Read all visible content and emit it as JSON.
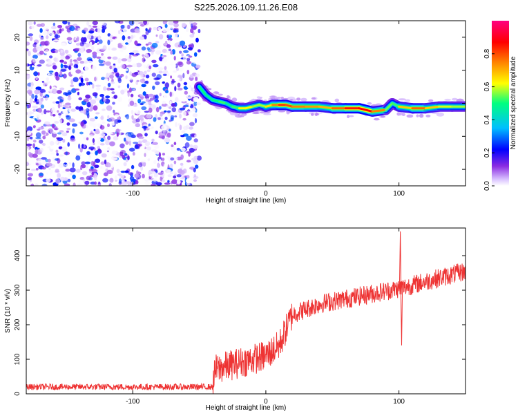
{
  "figure": {
    "title": "S225.2026.109.11.26.E08"
  },
  "chart_data": [
    {
      "type": "heatmap",
      "name": "spectrogram",
      "xlabel": "Height of straight line (km)",
      "ylabel": "Frequency (Hz)",
      "xlim": [
        -180,
        150
      ],
      "ylim": [
        -25,
        25
      ],
      "xticks": [
        -100,
        0,
        100
      ],
      "yticks": [
        -20,
        -10,
        0,
        10,
        20
      ],
      "colorbar": {
        "label": "Normalized spectral amplitude",
        "range": [
          0,
          1
        ],
        "ticks": [
          0.0,
          0.2,
          0.4,
          0.6,
          0.8
        ],
        "tick_labels": [
          "0.0",
          "0.2",
          "0.4",
          "0.6",
          "0.8"
        ],
        "colors": [
          "#ffffff",
          "#d9c2ff",
          "#8a2be2",
          "#0000ff",
          "#00bfff",
          "#00ff80",
          "#ffff00",
          "#ff8000",
          "#ff0000",
          "#ff0080"
        ]
      },
      "noise_region": {
        "x_range": [
          -180,
          -50
        ],
        "freq_range": [
          -25,
          25
        ],
        "amplitude_range": [
          0.0,
          0.3
        ]
      },
      "signal_track": [
        {
          "x": -50,
          "freq": 5,
          "amp": 0.5
        },
        {
          "x": -45,
          "freq": 2.5,
          "amp": 0.5
        },
        {
          "x": -40,
          "freq": 1,
          "amp": 0.45
        },
        {
          "x": -35,
          "freq": 0.5,
          "amp": 0.55
        },
        {
          "x": -30,
          "freq": 0,
          "amp": 0.5
        },
        {
          "x": -25,
          "freq": -1,
          "amp": 0.45
        },
        {
          "x": -20,
          "freq": -1.5,
          "amp": 0.6
        },
        {
          "x": -15,
          "freq": -1.5,
          "amp": 0.65
        },
        {
          "x": -10,
          "freq": -1,
          "amp": 0.6
        },
        {
          "x": -5,
          "freq": -0.5,
          "amp": 0.55
        },
        {
          "x": 0,
          "freq": -1,
          "amp": 0.6
        },
        {
          "x": 5,
          "freq": -0.5,
          "amp": 0.7
        },
        {
          "x": 10,
          "freq": -0.5,
          "amp": 0.8
        },
        {
          "x": 15,
          "freq": -0.5,
          "amp": 0.85
        },
        {
          "x": 20,
          "freq": -1,
          "amp": 0.75
        },
        {
          "x": 30,
          "freq": -1,
          "amp": 0.75
        },
        {
          "x": 40,
          "freq": -1,
          "amp": 0.7
        },
        {
          "x": 50,
          "freq": -1.5,
          "amp": 0.7
        },
        {
          "x": 60,
          "freq": -1.5,
          "amp": 0.85
        },
        {
          "x": 70,
          "freq": -1.5,
          "amp": 0.85
        },
        {
          "x": 80,
          "freq": -2.5,
          "amp": 0.9
        },
        {
          "x": 90,
          "freq": -2,
          "amp": 0.6
        },
        {
          "x": 95,
          "freq": 0,
          "amp": 0.5
        },
        {
          "x": 100,
          "freq": -1,
          "amp": 0.55
        },
        {
          "x": 110,
          "freq": -1.5,
          "amp": 0.8
        },
        {
          "x": 120,
          "freq": -1.5,
          "amp": 0.75
        },
        {
          "x": 130,
          "freq": -1,
          "amp": 0.6
        },
        {
          "x": 140,
          "freq": -1,
          "amp": 0.6
        },
        {
          "x": 150,
          "freq": -1,
          "amp": 0.55
        }
      ]
    },
    {
      "type": "line",
      "name": "snr",
      "xlabel": "Height of straight line (km)",
      "ylabel": "SNR (10 * v/v)",
      "xlim": [
        -180,
        150
      ],
      "ylim": [
        0,
        480
      ],
      "xticks": [
        -100,
        0,
        100
      ],
      "yticks": [
        0,
        100,
        200,
        300,
        400
      ],
      "line_color": "#ee3333",
      "series": [
        {
          "name": "SNR",
          "trend": [
            {
              "x": -180,
              "y": 20
            },
            {
              "x": -40,
              "y": 20
            },
            {
              "x": -38,
              "y": 70
            },
            {
              "x": -20,
              "y": 90
            },
            {
              "x": 0,
              "y": 110
            },
            {
              "x": 10,
              "y": 140
            },
            {
              "x": 20,
              "y": 230
            },
            {
              "x": 40,
              "y": 260
            },
            {
              "x": 60,
              "y": 275
            },
            {
              "x": 80,
              "y": 290
            },
            {
              "x": 100,
              "y": 305
            },
            {
              "x": 120,
              "y": 325
            },
            {
              "x": 150,
              "y": 355
            }
          ],
          "events": [
            {
              "x": 101,
              "y": 470
            },
            {
              "x": 102,
              "y": 140
            }
          ]
        }
      ]
    }
  ]
}
